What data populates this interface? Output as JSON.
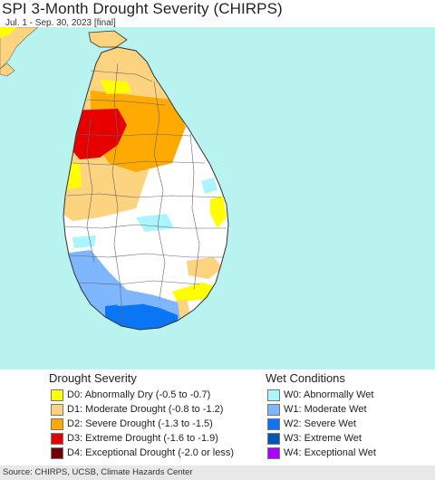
{
  "title": "SPI 3-Month Drought Severity (CHIRPS)",
  "subtitle": "Jul. 1 - Sep. 30, 2023 [final]",
  "map": {
    "region": "Sri Lanka",
    "ocean_color": "#b9f3ef",
    "land_color": "#ffffff",
    "boundary_color": "#666666"
  },
  "legend": {
    "drought": {
      "title": "Drought Severity",
      "items": [
        {
          "code": "D0",
          "label": "D0: Abnormally Dry (-0.5 to -0.7)",
          "color": "#ffff00"
        },
        {
          "code": "D1",
          "label": "D1: Moderate Drought (-0.8 to -1.2)",
          "color": "#fcd37f"
        },
        {
          "code": "D2",
          "label": "D2: Severe Drought (-1.3 to -1.5)",
          "color": "#ffaa00"
        },
        {
          "code": "D3",
          "label": "D3: Extreme Drought (-1.6 to -1.9)",
          "color": "#e60000"
        },
        {
          "code": "D4",
          "label": "D4: Exceptional Drought (-2.0 or less)",
          "color": "#730000"
        }
      ]
    },
    "wet": {
      "title": "Wet Conditions",
      "items": [
        {
          "code": "W0",
          "label": "W0: Abnormally Wet",
          "color": "#aaf5ff"
        },
        {
          "code": "W1",
          "label": "W1: Moderate Wet",
          "color": "#7eb6ff"
        },
        {
          "code": "W2",
          "label": "W2: Severe Wet",
          "color": "#0a75f5"
        },
        {
          "code": "W3",
          "label": "W3: Extreme Wet",
          "color": "#0055b5"
        },
        {
          "code": "W4",
          "label": "W4: Exceptional Wet",
          "color": "#aa00ff"
        }
      ]
    }
  },
  "footer": "Source: CHIRPS, UCSB, Climate Hazards Center"
}
